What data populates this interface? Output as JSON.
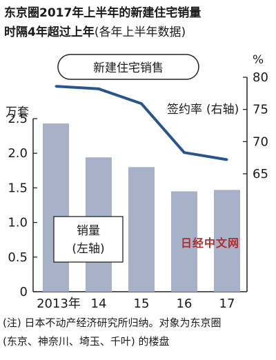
{
  "title_line1": "东京圈2017年上半年的新建住宅销量",
  "title_line2": "时隔4年超过上年",
  "title_note": "(各年上半年数据)",
  "legend_box": "新建住宅销售",
  "watermark": "日经中文网",
  "notes": [
    "(注) 日本不动产经济研究所归纳。对象为东京圈",
    "(东京、神奈川、埼玉、千叶) 的楼盘"
  ],
  "colors": {
    "bar": "#a7b1c8",
    "line": "#27558c",
    "watermark": "#b22a2a"
  },
  "chart_data": {
    "type": "bar+line",
    "categories": [
      "2013年",
      "14",
      "15",
      "16",
      "17"
    ],
    "left_axis": {
      "unit": "万套",
      "ticks": [
        "2.5",
        "2.0",
        "1.5",
        "1.0",
        "0.5",
        "0"
      ],
      "range": [
        0,
        2.5
      ]
    },
    "right_axis": {
      "unit": "%",
      "ticks": [
        "80",
        "75",
        "70",
        "65"
      ],
      "range": [
        65,
        80
      ]
    },
    "series": [
      {
        "name": "销量",
        "name_note": "(左轴)",
        "type": "bar",
        "axis": "left",
        "values": [
          2.43,
          1.94,
          1.8,
          1.45,
          1.47
        ]
      },
      {
        "name": "签约率",
        "name_note": "(右轴)",
        "type": "line",
        "axis": "right",
        "values": [
          78.6,
          78.2,
          75.9,
          68.3,
          67.2
        ]
      }
    ]
  }
}
